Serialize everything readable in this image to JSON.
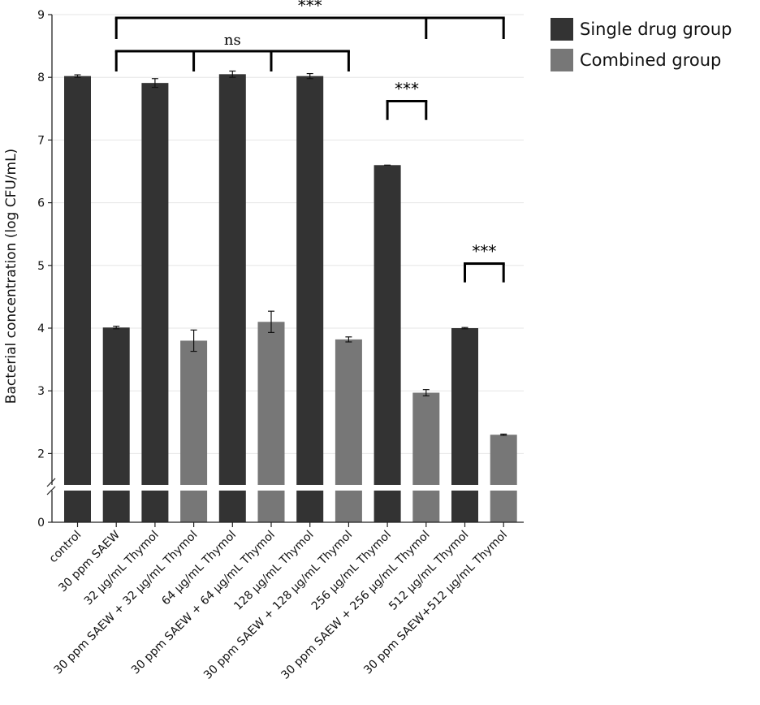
{
  "chart_data": {
    "type": "bar",
    "ylabel": "Bacterial concentration  (log CFU/mL)",
    "y_ticks": [
      "0",
      "2",
      "3",
      "4",
      "5",
      "6",
      "7",
      "8",
      "9"
    ],
    "ylim_upper": [
      1.5,
      9
    ],
    "axis_break": true,
    "categories": [
      "control",
      "30 ppm SAEW",
      "32 μg/mL Thymol",
      "30 ppm SAEW + 32 μg/mL Thymol",
      "64 μg/mL Thymol",
      "30 ppm SAEW + 64 μg/mL Thymol",
      "128 μg/mL Thymol",
      "30 ppm SAEW + 128 μg/mL Thymol",
      "256 μg/mL Thymol",
      "30 ppm SAEW + 256 μg/mL Thymol",
      "512 μg/mL Thymol",
      "30 ppm SAEW+512 μg/mL Thymol"
    ],
    "values": [
      8.02,
      4.01,
      7.91,
      3.8,
      8.05,
      4.1,
      8.02,
      3.82,
      6.6,
      2.97,
      4.0,
      2.3
    ],
    "errors": [
      0.02,
      0.02,
      0.07,
      0.17,
      0.05,
      0.17,
      0.04,
      0.04,
      0.0,
      0.05,
      0.01,
      0.01
    ],
    "groups": [
      "single",
      "single",
      "single",
      "combined",
      "single",
      "combined",
      "single",
      "combined",
      "single",
      "combined",
      "single",
      "combined"
    ],
    "legend": [
      {
        "key": "single",
        "label": "Single drug group",
        "color": "#333333"
      },
      {
        "key": "combined",
        "label": "Combined group",
        "color": "#777777"
      }
    ],
    "annotations": [
      {
        "label": "***",
        "from": 1,
        "to": 11,
        "drops": [
          1,
          9,
          11
        ],
        "level": 1
      },
      {
        "label": "ns",
        "from": 1,
        "to": 7,
        "drops": [
          1,
          3,
          5,
          7
        ],
        "level": 2
      },
      {
        "label": "***",
        "from": 8,
        "to": 9,
        "drops": [
          8,
          9
        ],
        "level": 3
      },
      {
        "label": "***",
        "from": 10,
        "to": 11,
        "drops": [
          10,
          11
        ],
        "level": 4
      }
    ]
  }
}
